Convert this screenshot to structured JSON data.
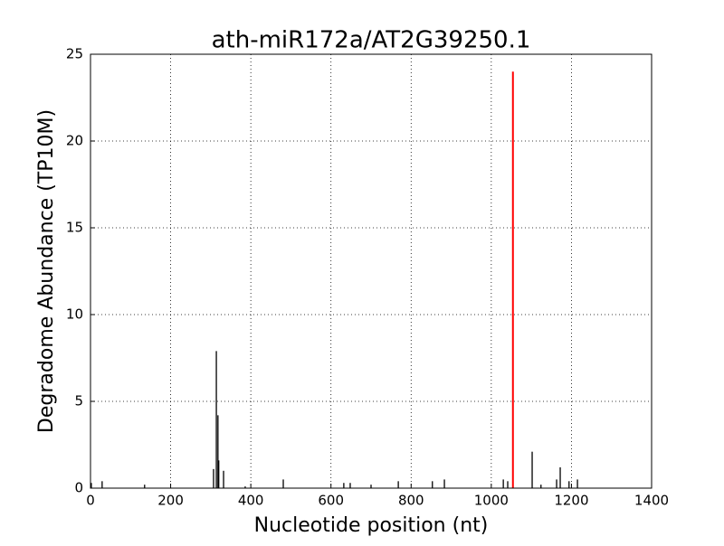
{
  "chart_data": {
    "type": "vlines",
    "title": "ath-miR172a/AT2G39250.1",
    "x_label": "Nucleotide position (nt)",
    "y_label": "Degradome Abundance (TP10M)",
    "xlim": [
      0,
      1400
    ],
    "xticks": [
      0,
      200,
      400,
      600,
      800,
      1000,
      1200,
      1400
    ],
    "ylim": [
      0,
      25
    ],
    "yticks": [
      0,
      5,
      10,
      15,
      20,
      25
    ],
    "grid": true,
    "series": [
      {
        "color": "#000000",
        "x": [
          2,
          29,
          135,
          307,
          314,
          318,
          320,
          332,
          386,
          481,
          632,
          648,
          700,
          768,
          853,
          883,
          1030,
          1041,
          1102,
          1124,
          1163,
          1172,
          1194,
          1215
        ],
        "values": [
          0.3,
          0.4,
          0.2,
          1.1,
          7.9,
          4.2,
          1.6,
          1.0,
          0.1,
          0.5,
          0.3,
          0.3,
          0.2,
          0.4,
          0.4,
          0.5,
          0.5,
          0.4,
          2.1,
          0.2,
          0.5,
          1.2,
          0.4,
          0.5
        ]
      },
      {
        "color": "#ff0000",
        "x": [
          1054
        ],
        "values": [
          24
        ]
      }
    ]
  }
}
